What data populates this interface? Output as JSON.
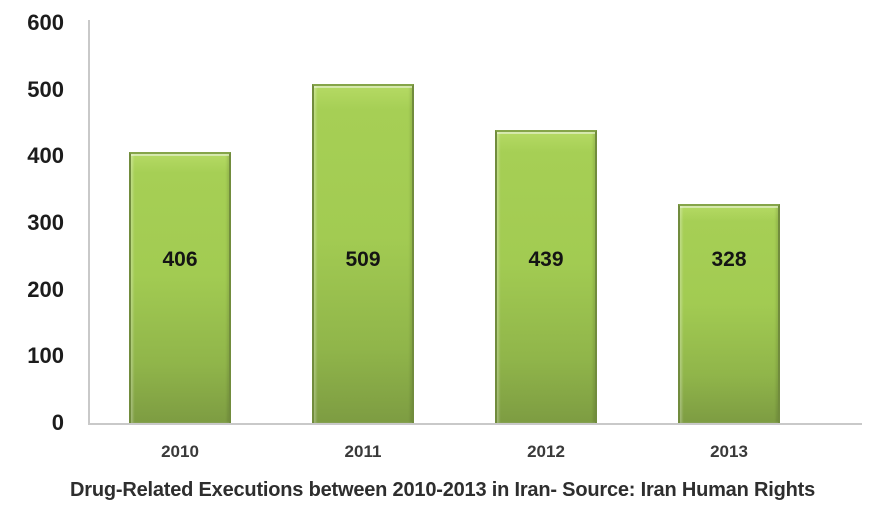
{
  "chart_data": {
    "type": "bar",
    "title": "",
    "caption": "Drug-Related Executions between 2010-2013 in Iran- Source: Iran Human Rights",
    "categories": [
      "2010",
      "2011",
      "2012",
      "2013"
    ],
    "values": [
      406,
      509,
      439,
      328
    ],
    "data_labels": [
      406,
      509,
      439,
      328
    ],
    "xlabel": "",
    "ylabel": "",
    "ylim": [
      0,
      600
    ],
    "yticks": [
      600,
      500,
      400,
      300,
      200,
      100,
      0
    ],
    "grid": false,
    "legend": "none",
    "data_label_position": "inside",
    "colors": {
      "bar_fill_top": "#a6cf55",
      "bar_fill_bottom": "#7d9c42",
      "bar_border": "#718c3d",
      "axis_line": "#c9c9c9",
      "value_label": "#141414",
      "tick_label": "#1c1c1c",
      "category_label": "#3a3a3a",
      "caption_text": "#2e2e2e",
      "background": "#ffffff"
    }
  }
}
